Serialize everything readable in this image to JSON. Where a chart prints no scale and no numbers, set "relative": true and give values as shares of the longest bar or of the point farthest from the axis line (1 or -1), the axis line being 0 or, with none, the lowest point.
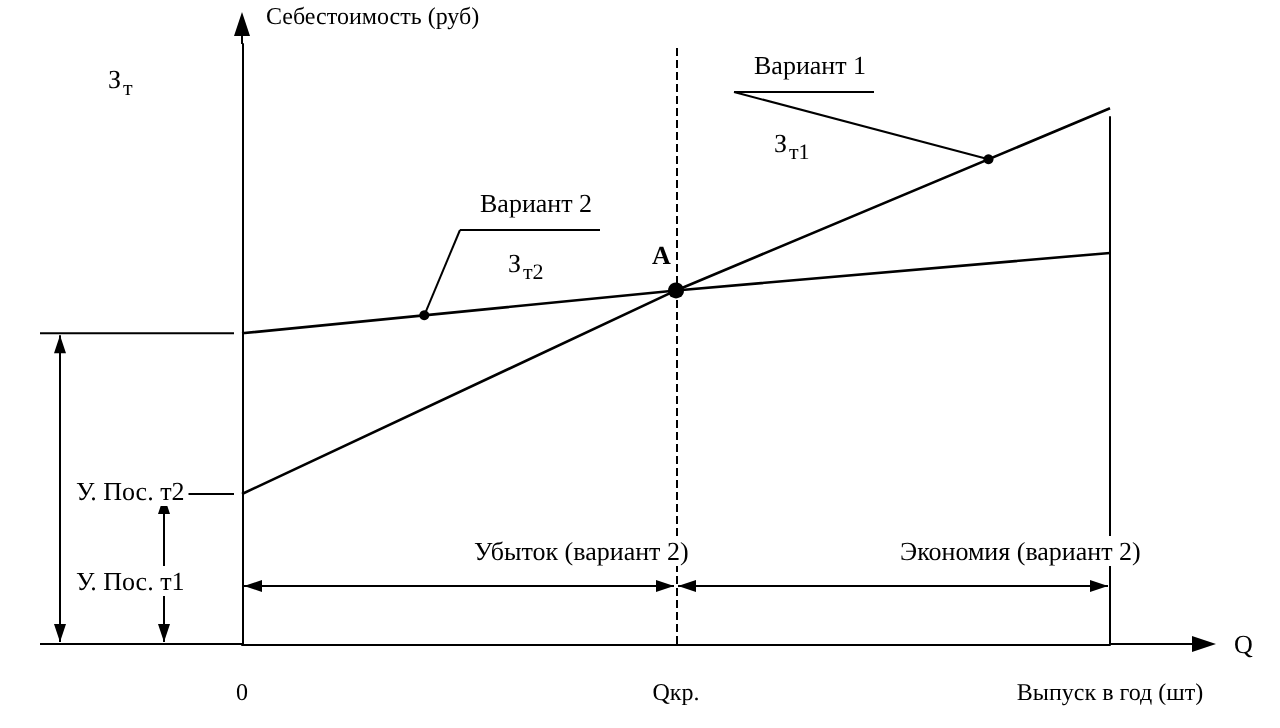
{
  "chart_data": {
    "type": "line",
    "relative": true,
    "xlabel": "Q",
    "ylabel": "Себестоимость (руб)",
    "categories": [
      "0",
      "Qкр.",
      "Выпуск в год (шт)"
    ],
    "series": [
      {
        "name": "Вариант 1",
        "color": "#000000",
        "values": [
          0.28,
          0.66,
          1.0
        ]
      },
      {
        "name": "Вариант 2",
        "color": "#000000",
        "values": [
          0.58,
          0.66,
          0.73
        ]
      }
    ],
    "marker": "none",
    "line_style": "solid",
    "legend": false,
    "ref_lines": [
      {
        "axis": "x",
        "value": "Qкр.",
        "line_style": "dashed",
        "color": "#000000"
      }
    ],
    "annotations": [
      {
        "text": "A",
        "x": "Qкр.",
        "y": 0.66
      },
      "З$_{т}$",
      "З$_{т1}$",
      "З$_{т2}$",
      "У. Пос. т2",
      "У. Пос. т1",
      "Убыток (вариант 2)",
      "Экономия (вариант 2)"
    ]
  }
}
